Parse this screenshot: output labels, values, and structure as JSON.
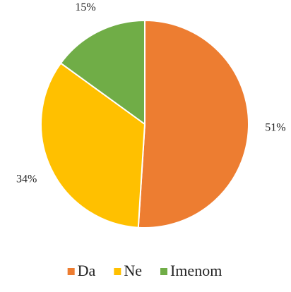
{
  "chart_data": {
    "type": "pie",
    "categories": [
      "Da",
      "Ne",
      "Imenom"
    ],
    "values": [
      51,
      34,
      15
    ],
    "value_labels": [
      "51%",
      "34%",
      "15%"
    ],
    "colors": [
      "#ED7D31",
      "#FFC000",
      "#70AD47"
    ],
    "legend": "bottom"
  }
}
